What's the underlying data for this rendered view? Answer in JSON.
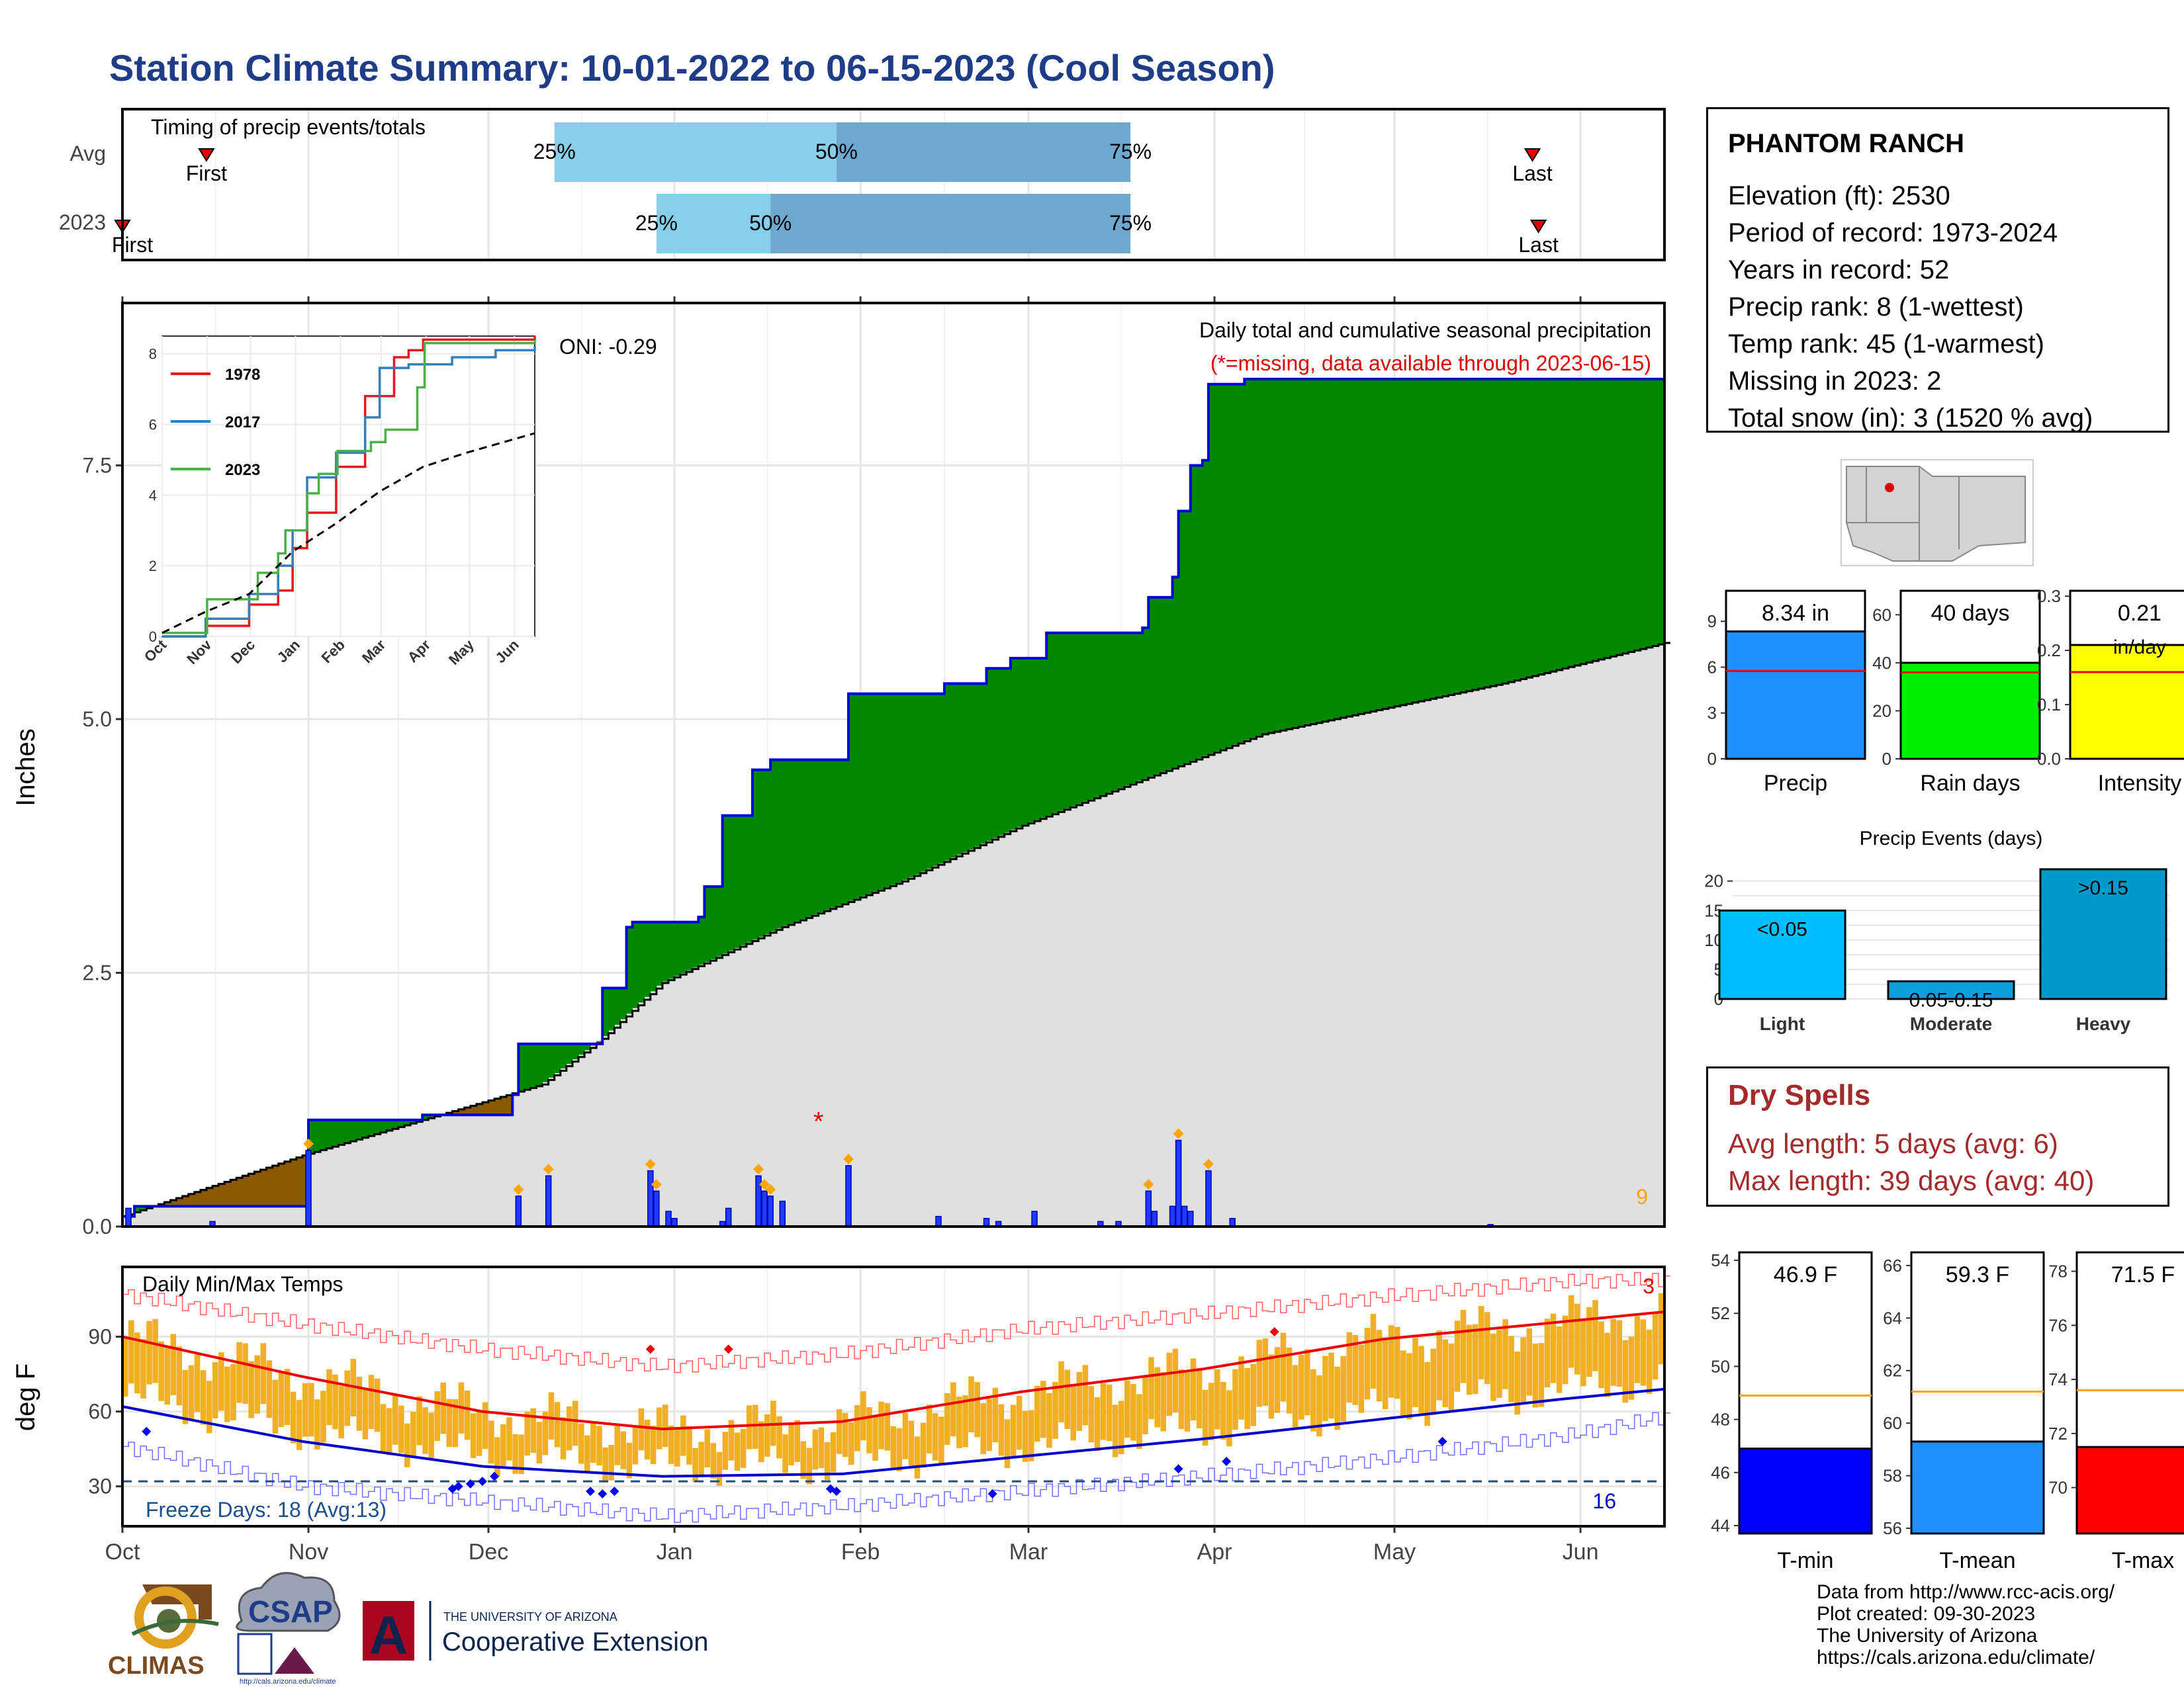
{
  "title": "Station Climate Summary: 10-01-2022 to 06-15-2023 (Cool Season)",
  "timing": {
    "label": "Timing of precip events/totals",
    "rows": [
      "Avg",
      "2023"
    ],
    "pct_labels": [
      "25%",
      "50%",
      "75%"
    ],
    "first_label": "First",
    "last_label": "Last",
    "avg": {
      "first": 14,
      "p25": 72,
      "p50": 119,
      "p75": 168,
      "last": 235
    },
    "y2023": {
      "first": 0,
      "p25": 89,
      "p50": 108,
      "p75": 168,
      "last": 236
    },
    "colors": {
      "q1": "#87ceeb",
      "q2": "#6fa8cf",
      "marker": "#e00000"
    }
  },
  "main": {
    "ylabel": "Inches",
    "note1": "Daily total and cumulative seasonal precipitation",
    "note2": "(*=missing, data available through 2023-06-15)",
    "oni": "ONI: -0.29",
    "count_label": "9",
    "yticks": [
      "0.0",
      "2.5",
      "5.0",
      "7.5"
    ],
    "colors": {
      "above": "#008800",
      "below": "#8b5a00",
      "climo": "#e0e0e0",
      "obs": "#0000dd"
    }
  },
  "inset": {
    "legend": [
      "1978",
      "2017",
      "2023"
    ],
    "colors": [
      "#e41a1c",
      "#377eb8",
      "#4daf4a"
    ],
    "yticks": [
      "0",
      "2",
      "4",
      "6",
      "8"
    ],
    "xticks": [
      "Oct",
      "Nov",
      "Dec",
      "Jan",
      "Feb",
      "Mar",
      "Apr",
      "May",
      "Jun"
    ]
  },
  "temps": {
    "label": "Daily Min/Max Temps",
    "ylabel": "deg F",
    "yticks": [
      "30",
      "60",
      "90"
    ],
    "freeze_label": "Freeze Days: 18 (Avg:13)",
    "count_top": "3",
    "count_bottom": "16"
  },
  "months": [
    "Oct",
    "Nov",
    "Dec",
    "Jan",
    "Feb",
    "Mar",
    "Apr",
    "May",
    "Jun"
  ],
  "station": {
    "name": "PHANTOM RANCH",
    "lines": [
      "Elevation (ft): 2530",
      "Period of record: 1973-2024",
      "Years in record: 52",
      "Precip rank: 8 (1-wettest)",
      "Temp rank: 45 (1-warmest)",
      "Missing in 2023: 2",
      "Total snow (in): 3 (1520 % avg)"
    ]
  },
  "summary_bars": [
    {
      "label": "Precip",
      "value_text": "8.34 in",
      "value": 8.34,
      "avg": 5.75,
      "max": 11,
      "ticks": [
        "0",
        "3",
        "6",
        "9"
      ],
      "tick_vals": [
        0,
        3,
        6,
        9
      ],
      "color": "#1e90ff"
    },
    {
      "label": "Rain days",
      "value_text": "40 days",
      "value": 40,
      "avg": 36,
      "max": 70,
      "ticks": [
        "0",
        "20",
        "40",
        "60"
      ],
      "tick_vals": [
        0,
        20,
        40,
        60
      ],
      "color": "#00ee00"
    },
    {
      "label": "Intensity",
      "value_text": "0.21",
      "value_text2": "in/day",
      "value": 0.21,
      "avg": 0.16,
      "max": 0.31,
      "ticks": [
        "0.0",
        "0.1",
        "0.2",
        "0.3"
      ],
      "tick_vals": [
        0,
        0.1,
        0.2,
        0.3
      ],
      "color": "#ffff00"
    }
  ],
  "events": {
    "title": "Precip Events (days)",
    "yticks": [
      "0",
      "5",
      "10",
      "15",
      "20"
    ],
    "categories": [
      "Light",
      "Moderate",
      "Heavy"
    ],
    "labels": [
      "<0.05",
      "0.05-0.15",
      ">0.15"
    ],
    "values": [
      15,
      3,
      22
    ],
    "colors": [
      "#00bfff",
      "#0b9fde",
      "#0099cc"
    ]
  },
  "dry_spells": {
    "title": "Dry Spells",
    "lines": [
      "Avg length: 5 days (avg: 6)",
      "Max length: 39 days (avg: 40)"
    ]
  },
  "temp_bars": [
    {
      "label": "T-min",
      "value_text": "46.9 F",
      "value": 46.9,
      "avg": 48.9,
      "min": 43.7,
      "max": 54.3,
      "ticks": [
        "44",
        "46",
        "48",
        "50",
        "52",
        "54"
      ],
      "tick_vals": [
        44,
        46,
        48,
        50,
        52,
        54
      ],
      "color": "#0000ff"
    },
    {
      "label": "T-mean",
      "value_text": "59.3 F",
      "value": 59.3,
      "avg": 61.2,
      "min": 55.8,
      "max": 66.5,
      "ticks": [
        "56",
        "58",
        "60",
        "62",
        "64",
        "66"
      ],
      "tick_vals": [
        56,
        58,
        60,
        62,
        64,
        66
      ],
      "color": "#1e90ff"
    },
    {
      "label": "T-max",
      "value_text": "71.5 F",
      "value": 71.5,
      "avg": 73.6,
      "min": 68.3,
      "max": 78.7,
      "ticks": [
        "70",
        "72",
        "74",
        "76",
        "78"
      ],
      "tick_vals": [
        70,
        72,
        74,
        76,
        78
      ],
      "color": "#ff0000"
    }
  ],
  "logos": {
    "climas": "CLIMAS",
    "csap": "CSAP",
    "ua_small": "THE UNIVERSITY OF ARIZONA",
    "ua_big": "Cooperative Extension",
    "ua_letter": "A"
  },
  "credits": [
    "Data from http://www.rcc-acis.org/",
    "Plot created: 09-30-2023",
    "The University of Arizona",
    "https://cals.arizona.edu/climate/"
  ],
  "chart_data": [
    {
      "type": "area",
      "title": "Daily total and cumulative seasonal precipitation",
      "ylabel": "Inches",
      "x_unit": "days since 2022-10-01",
      "ylim": [
        0,
        9.1
      ],
      "series": [
        {
          "name": "2023 cumulative",
          "points": [
            [
              0,
              0.1
            ],
            [
              2,
              0.2
            ],
            [
              30,
              0.2
            ],
            [
              31,
              1.05
            ],
            [
              50,
              1.1
            ],
            [
              65,
              1.3
            ],
            [
              66,
              1.8
            ],
            [
              79,
              1.8
            ],
            [
              80,
              2.35
            ],
            [
              84,
              2.95
            ],
            [
              85,
              3.0
            ],
            [
              96,
              3.05
            ],
            [
              97,
              3.35
            ],
            [
              100,
              4.05
            ],
            [
              105,
              4.5
            ],
            [
              108,
              4.6
            ],
            [
              120,
              4.6
            ],
            [
              121,
              5.25
            ],
            [
              136,
              5.25
            ],
            [
              137,
              5.35
            ],
            [
              143,
              5.35
            ],
            [
              144,
              5.5
            ],
            [
              148,
              5.6
            ],
            [
              154,
              5.85
            ],
            [
              170,
              5.9
            ],
            [
              171,
              6.2
            ],
            [
              175,
              6.4
            ],
            [
              176,
              7.05
            ],
            [
              178,
              7.5
            ],
            [
              180,
              7.55
            ],
            [
              181,
              8.3
            ],
            [
              187,
              8.35
            ],
            [
              257,
              8.4
            ]
          ]
        },
        {
          "name": "average cumulative",
          "points": [
            [
              0,
              0.1
            ],
            [
              30,
              0.7
            ],
            [
              50,
              1.05
            ],
            [
              70,
              1.4
            ],
            [
              80,
              1.85
            ],
            [
              90,
              2.4
            ],
            [
              110,
              2.95
            ],
            [
              130,
              3.4
            ],
            [
              150,
              3.95
            ],
            [
              170,
              4.4
            ],
            [
              190,
              4.85
            ],
            [
              210,
              5.1
            ],
            [
              230,
              5.35
            ],
            [
              257,
              5.75
            ]
          ]
        }
      ]
    },
    {
      "type": "bar",
      "title": "Daily precipitation",
      "x_unit": "days since 2022-10-01",
      "values": [
        [
          1,
          0.18
        ],
        [
          15,
          0.05
        ],
        [
          31,
          0.75
        ],
        [
          66,
          0.3
        ],
        [
          71,
          0.5
        ],
        [
          88,
          0.55
        ],
        [
          89,
          0.35
        ],
        [
          91,
          0.15
        ],
        [
          92,
          0.08
        ],
        [
          100,
          0.05
        ],
        [
          101,
          0.18
        ],
        [
          106,
          0.5
        ],
        [
          107,
          0.35
        ],
        [
          108,
          0.3
        ],
        [
          110,
          0.25
        ],
        [
          121,
          0.6
        ],
        [
          136,
          0.1
        ],
        [
          144,
          0.08
        ],
        [
          146,
          0.05
        ],
        [
          152,
          0.15
        ],
        [
          163,
          0.05
        ],
        [
          166,
          0.05
        ],
        [
          171,
          0.35
        ],
        [
          172,
          0.15
        ],
        [
          175,
          0.2
        ],
        [
          176,
          0.85
        ],
        [
          177,
          0.2
        ],
        [
          178,
          0.15
        ],
        [
          181,
          0.55
        ],
        [
          185,
          0.08
        ],
        [
          228,
          0.02
        ]
      ]
    },
    {
      "type": "line",
      "title": "Cumulative precipitation (inset)",
      "xlabel": "",
      "ylim": [
        0,
        8.5
      ],
      "x_unit": "days since 2022-10-01",
      "series": [
        {
          "name": "1978",
          "points": [
            [
              0,
              0
            ],
            [
              30,
              0.3
            ],
            [
              60,
              0.9
            ],
            [
              80,
              1.3
            ],
            [
              90,
              2.5
            ],
            [
              100,
              3.5
            ],
            [
              120,
              4.8
            ],
            [
              140,
              6.8
            ],
            [
              160,
              7.9
            ],
            [
              170,
              8.1
            ],
            [
              180,
              8.4
            ],
            [
              257,
              8.5
            ]
          ]
        },
        {
          "name": "2017",
          "points": [
            [
              0,
              0
            ],
            [
              30,
              0.5
            ],
            [
              60,
              1.2
            ],
            [
              80,
              2.0
            ],
            [
              90,
              3.0
            ],
            [
              100,
              4.5
            ],
            [
              120,
              5.2
            ],
            [
              140,
              6.2
            ],
            [
              150,
              7.6
            ],
            [
              170,
              7.7
            ],
            [
              200,
              7.9
            ],
            [
              230,
              8.1
            ],
            [
              257,
              8.2
            ]
          ]
        },
        {
          "name": "2023",
          "points": [
            [
              0,
              0.1
            ],
            [
              31,
              1.05
            ],
            [
              66,
              1.8
            ],
            [
              80,
              2.35
            ],
            [
              85,
              3.0
            ],
            [
              100,
              4.05
            ],
            [
              108,
              4.6
            ],
            [
              121,
              5.25
            ],
            [
              144,
              5.5
            ],
            [
              154,
              5.85
            ],
            [
              176,
              7.05
            ],
            [
              181,
              8.3
            ],
            [
              257,
              8.4
            ]
          ]
        },
        {
          "name": "average",
          "points": [
            [
              0,
              0.1
            ],
            [
              30,
              0.7
            ],
            [
              60,
              1.2
            ],
            [
              90,
              2.4
            ],
            [
              120,
              3.2
            ],
            [
              150,
              4.1
            ],
            [
              180,
              4.8
            ],
            [
              210,
              5.2
            ],
            [
              257,
              5.75
            ]
          ]
        }
      ]
    },
    {
      "type": "line",
      "title": "Daily Min/Max Temps",
      "ylabel": "deg F",
      "x_unit": "days since 2022-10-01",
      "ylim": [
        14,
        118
      ],
      "series": [
        {
          "name": "avg max",
          "points": [
            [
              0,
              90
            ],
            [
              30,
              74
            ],
            [
              60,
              60
            ],
            [
              90,
              53
            ],
            [
              120,
              56
            ],
            [
              150,
              68
            ],
            [
              180,
              77
            ],
            [
              210,
              89
            ],
            [
              240,
              96
            ],
            [
              257,
              100
            ]
          ]
        },
        {
          "name": "avg min",
          "points": [
            [
              0,
              62
            ],
            [
              30,
              48
            ],
            [
              60,
              38
            ],
            [
              90,
              34
            ],
            [
              120,
              35
            ],
            [
              150,
              42
            ],
            [
              180,
              49
            ],
            [
              210,
              57
            ],
            [
              240,
              65
            ],
            [
              257,
              69
            ]
          ]
        },
        {
          "name": "record max",
          "points": [
            [
              0,
              107
            ],
            [
              30,
              95
            ],
            [
              60,
              85
            ],
            [
              90,
              78
            ],
            [
              120,
              83
            ],
            [
              150,
              93
            ],
            [
              180,
              99
            ],
            [
              210,
              106
            ],
            [
              240,
              112
            ],
            [
              257,
              113
            ]
          ]
        },
        {
          "name": "record min",
          "points": [
            [
              0,
              46
            ],
            [
              30,
              30
            ],
            [
              60,
              24
            ],
            [
              90,
              18
            ],
            [
              120,
              22
            ],
            [
              150,
              28
            ],
            [
              180,
              34
            ],
            [
              210,
              41
            ],
            [
              240,
              50
            ],
            [
              257,
              58
            ]
          ]
        }
      ],
      "freeze_days": 18,
      "freeze_avg": 13
    }
  ]
}
